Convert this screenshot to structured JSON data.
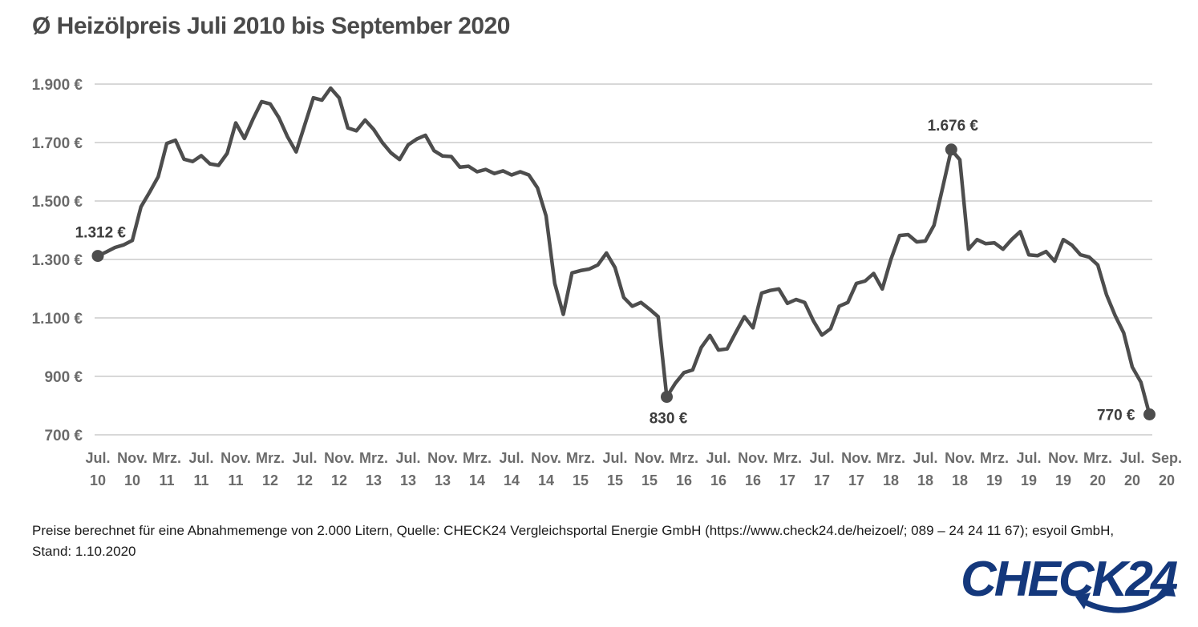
{
  "title": "Ø Heizölpreis Juli 2010 bis September 2020",
  "colors": {
    "line": "#4d4d4d",
    "grid": "#d8d8d8",
    "axis_text": "#6b6b6b",
    "title_text": "#4a4a4a",
    "annotation_text": "#3d3d3d",
    "footer_text": "#1a1a1a",
    "logo_blue": "#14387c"
  },
  "chart_data": {
    "type": "line",
    "title": "Ø Heizölpreis Juli 2010 bis September 2020",
    "unit": "€",
    "x_start": "Jul. 10",
    "x_end": "Sep. 20",
    "frequency": "monthly",
    "grid": true,
    "legend": false,
    "ylim": [
      700,
      1900
    ],
    "y_ticks": [
      1900,
      1700,
      1500,
      1300,
      1100,
      900,
      700
    ],
    "y_tick_labels": [
      "1.900 €",
      "1.700 €",
      "1.500 €",
      "1.300 €",
      "1.100 €",
      "900 €",
      "700 €"
    ],
    "x_tick_labels": [
      {
        "month": "Jul.",
        "year": "10"
      },
      {
        "month": "Nov.",
        "year": "10"
      },
      {
        "month": "Mrz.",
        "year": "11"
      },
      {
        "month": "Jul.",
        "year": "11"
      },
      {
        "month": "Nov.",
        "year": "11"
      },
      {
        "month": "Mrz.",
        "year": "12"
      },
      {
        "month": "Jul.",
        "year": "12"
      },
      {
        "month": "Nov.",
        "year": "12"
      },
      {
        "month": "Mrz.",
        "year": "13"
      },
      {
        "month": "Jul.",
        "year": "13"
      },
      {
        "month": "Nov.",
        "year": "13"
      },
      {
        "month": "Mrz.",
        "year": "14"
      },
      {
        "month": "Jul.",
        "year": "14"
      },
      {
        "month": "Nov.",
        "year": "14"
      },
      {
        "month": "Mrz.",
        "year": "15"
      },
      {
        "month": "Jul.",
        "year": "15"
      },
      {
        "month": "Nov.",
        "year": "15"
      },
      {
        "month": "Mrz.",
        "year": "16"
      },
      {
        "month": "Jul.",
        "year": "16"
      },
      {
        "month": "Nov.",
        "year": "16"
      },
      {
        "month": "Mrz.",
        "year": "17"
      },
      {
        "month": "Jul.",
        "year": "17"
      },
      {
        "month": "Nov.",
        "year": "17"
      },
      {
        "month": "Mrz.",
        "year": "18"
      },
      {
        "month": "Jul.",
        "year": "18"
      },
      {
        "month": "Nov.",
        "year": "18"
      },
      {
        "month": "Mrz.",
        "year": "19"
      },
      {
        "month": "Jul.",
        "year": "19"
      },
      {
        "month": "Nov.",
        "year": "19"
      },
      {
        "month": "Mrz.",
        "year": "20"
      },
      {
        "month": "Jul.",
        "year": "20"
      },
      {
        "month": "Sep.",
        "year": "20"
      }
    ],
    "values": [
      1312,
      1326,
      1341,
      1350,
      1365,
      1480,
      1530,
      1583,
      1697,
      1708,
      1643,
      1635,
      1655,
      1627,
      1622,
      1663,
      1767,
      1714,
      1780,
      1840,
      1832,
      1785,
      1720,
      1668,
      1760,
      1853,
      1845,
      1886,
      1853,
      1750,
      1740,
      1777,
      1745,
      1700,
      1665,
      1642,
      1692,
      1712,
      1725,
      1672,
      1654,
      1652,
      1616,
      1619,
      1600,
      1608,
      1594,
      1603,
      1589,
      1600,
      1589,
      1545,
      1449,
      1218,
      1112,
      1254,
      1262,
      1267,
      1281,
      1322,
      1272,
      1170,
      1140,
      1153,
      1130,
      1104,
      830,
      877,
      913,
      922,
      999,
      1040,
      990,
      994,
      1050,
      1104,
      1066,
      1185,
      1194,
      1199,
      1150,
      1163,
      1153,
      1090,
      1041,
      1063,
      1140,
      1153,
      1218,
      1226,
      1252,
      1199,
      1300,
      1382,
      1385,
      1360,
      1363,
      1417,
      1545,
      1676,
      1641,
      1335,
      1368,
      1354,
      1357,
      1335,
      1368,
      1395,
      1316,
      1313,
      1327,
      1294,
      1368,
      1349,
      1316,
      1308,
      1281,
      1180,
      1109,
      1049,
      932,
      880,
      770
    ],
    "annotations": [
      {
        "index": 0,
        "label": "1.312 €",
        "placement": "top-left"
      },
      {
        "index": 66,
        "label": "830 €",
        "placement": "bottom"
      },
      {
        "index": 99,
        "label": "1.676 €",
        "placement": "top"
      },
      {
        "index": 122,
        "label": "770 €",
        "placement": "left"
      }
    ]
  },
  "footer": {
    "line1": "Preise berechnet für eine Abnahmemenge von 2.000 Litern, Quelle: CHECK24 Vergleichsportal Energie GmbH (https://www.check24.de/heizoel/; 089 – 24 24 11 67); esyoil GmbH,",
    "line2": "Stand: 1.10.2020"
  },
  "logo": {
    "text": "CHECK24"
  }
}
